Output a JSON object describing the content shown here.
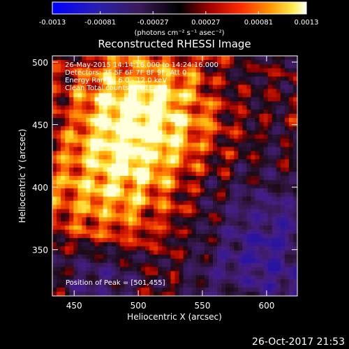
{
  "colorbar": {
    "ticks": [
      "-0.0013",
      "-0.00081",
      "-0.00027",
      "0.00027",
      "0.00081",
      "0.0013"
    ],
    "tick_values": [
      -0.0013,
      -0.00081,
      -0.00027,
      0.00027,
      0.00081,
      0.0013
    ],
    "range": [
      -0.0013,
      0.0013
    ],
    "units_text": "(photons cm⁻² s⁻¹ asec⁻²)"
  },
  "chart_data": {
    "type": "heatmap",
    "title": "Reconstructed RHESSI Image",
    "xlabel": "Heliocentric X (arcsec)",
    "ylabel": "Heliocentric Y (arcsec)",
    "xlim": [
      433,
      624
    ],
    "ylim": [
      313,
      505
    ],
    "xticks": [
      450,
      500,
      550,
      600
    ],
    "yticks": [
      350,
      400,
      450,
      500
    ],
    "peak": [
      501,
      455
    ],
    "annotations": [
      "26-May-2015 14:14:16.000 to 14:24:16.000",
      "Detectors: 3F 5F 6F 7F 8F 9F, Att 0",
      "Energy Range: 6.0 - 12.0 keV",
      "Clean    Total counts: 5.61E+04"
    ],
    "peak_text": "Position of Peak = [501,455]",
    "colormap": [
      "#0000ff",
      "#4b2a8c",
      "#000000",
      "#b30000",
      "#ff6600",
      "#ffcc00",
      "#ffffff"
    ]
  },
  "footer": {
    "date": "26-Oct-2017 21:53"
  }
}
